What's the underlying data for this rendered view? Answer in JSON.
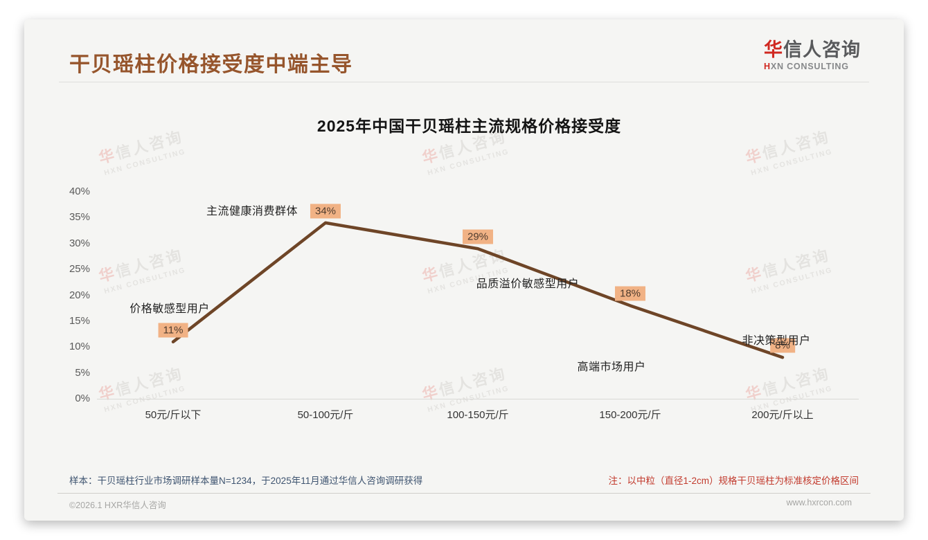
{
  "page": {
    "title": "干贝瑶柱价格接受度中端主导",
    "logo": {
      "cn_accent": "华",
      "cn_rest": "信人咨询",
      "en_accent": "H",
      "en_rest": "XN CONSULTING"
    },
    "watermark": {
      "cn_accent": "华",
      "cn_rest": "信人咨询",
      "en": "HXN CONSULTING"
    },
    "footer": {
      "sample_note": "样本：干贝瑶柱行业市场调研样本量N=1234，于2025年11月通过华信人咨询调研获得",
      "spec_note": "注：以中粒（直径1-2cm）规格干贝瑶柱为标准核定价格区间",
      "copyright": "©2026.1 HXR华信人咨询",
      "website": "www.hxrcon.com"
    }
  },
  "colors": {
    "title_brown": "#96552c",
    "line_brown": "#6e4527",
    "badge_bg": "#f1b285",
    "badge_text": "#4e3b2e",
    "note_blue": "#3e5470",
    "note_red": "#c23b2e",
    "logo_red": "#d02820",
    "logo_gray": "#595a5c",
    "watermark_gray": "#d7d5d2",
    "watermark_red": "#edb3ad"
  },
  "chart_data": {
    "type": "line",
    "title": "2025年中国干贝瑶柱主流规格价格接受度",
    "categories": [
      "50元/斤以下",
      "50-100元/斤",
      "100-150元/斤",
      "150-200元/斤",
      "200元/斤以上"
    ],
    "values": [
      11,
      34,
      29,
      18,
      8
    ],
    "value_labels": [
      "11%",
      "34%",
      "29%",
      "18%",
      "8%"
    ],
    "annotations": [
      "价格敏感型用户",
      "主流健康消费群体",
      "品质溢价敏感型用户",
      "高端市场用户",
      "非决策型用户"
    ],
    "yticks": [
      "0%",
      "5%",
      "10%",
      "15%",
      "20%",
      "25%",
      "30%",
      "35%",
      "40%"
    ],
    "ylim": [
      0,
      40
    ],
    "xlabel": "",
    "ylabel": "",
    "grid": false,
    "legend": "none"
  }
}
